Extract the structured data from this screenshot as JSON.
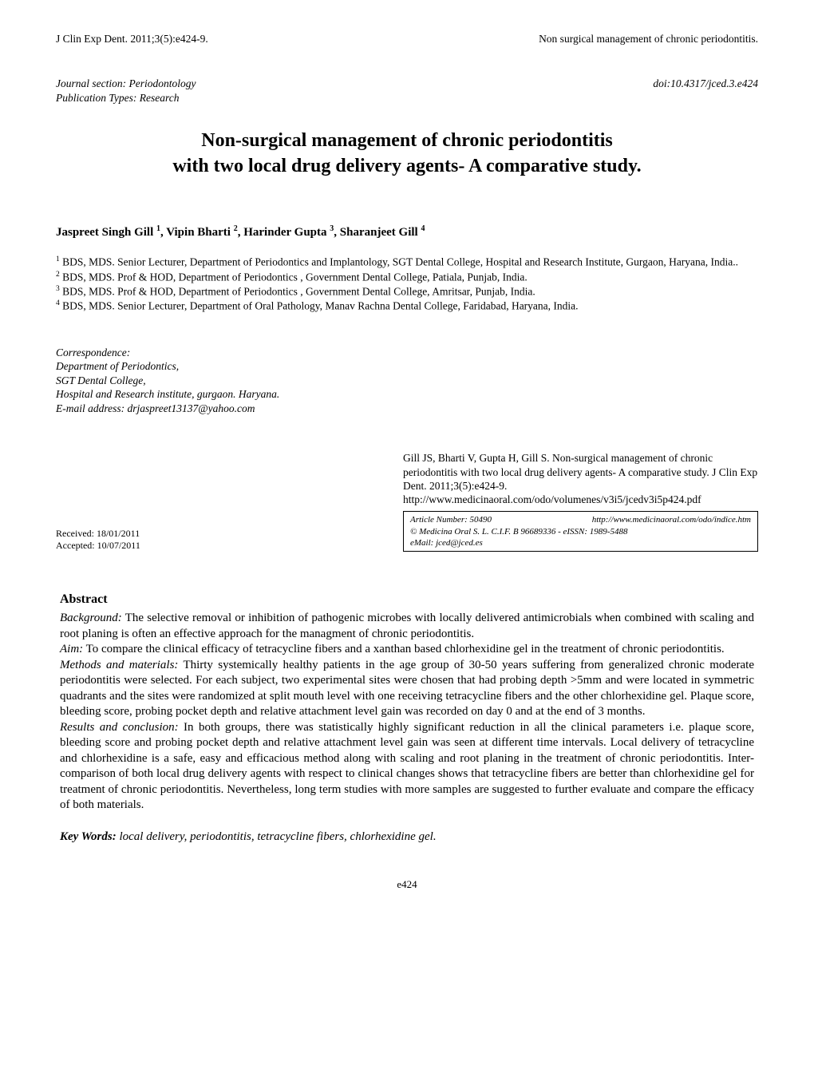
{
  "header": {
    "left": "J Clin Exp Dent. 2011;3(5):e424-9.",
    "right": "Non surgical management of chronic periodontitis."
  },
  "journal_meta": {
    "section": "Journal section: Periodontology",
    "pubtype": "Publication Types: Research",
    "doi": "doi:10.4317/jced.3.e424"
  },
  "title_line1": "Non-surgical management of chronic periodontitis",
  "title_line2": "with two local drug delivery agents- A comparative study.",
  "authors": {
    "a1": "Jaspreet Singh Gill",
    "a2": "Vipin Bharti",
    "a3": "Harinder Gupta",
    "a4": "Sharanjeet Gill",
    "s1": "1",
    "s2": "2",
    "s3": "3",
    "s4": "4",
    "sep": ", "
  },
  "affiliations": {
    "s1": "1",
    "t1": " BDS, MDS. Senior Lecturer, Department of Periodontics and Implantology, SGT Dental College, Hospital and Research Institute, Gurgaon, Haryana, India..",
    "s2": "2",
    "t2": " BDS, MDS. Prof & HOD, Department of Periodontics  , Government Dental College, Patiala, Punjab, India.",
    "s3": "3",
    "t3": " BDS, MDS. Prof & HOD, Department of Periodontics , Government Dental College, Amritsar, Punjab, India.",
    "s4": "4",
    "t4": " BDS, MDS. Senior Lecturer, Department of Oral Pathology, Manav Rachna Dental College, Faridabad, Haryana, India."
  },
  "correspondence": {
    "head": "Correspondence:",
    "l1": "Department of Periodontics,",
    "l2": "SGT Dental College,",
    "l3": "Hospital and Research institute, gurgaon. Haryana.",
    "l4": "E-mail address: drjaspreet13137@yahoo.com"
  },
  "dates": {
    "received": "Received: 18/01/2011",
    "accepted": "Accepted: 10/07/2011"
  },
  "citation": {
    "text": "Gill JS, Bharti V, Gupta H, Gill S. Non-surgical management of chronic periodontitis with two local drug delivery agents- A comparative study. J Clin Exp Dent. 2011;3(5):e424-9.",
    "url": "http://www.medicinaoral.com/odo/volumenes/v3i5/jcedv3i5p424.pdf"
  },
  "article_box": {
    "number_label": "Article Number: 50490",
    "indice_url": "http://www.medicinaoral.com/odo/indice.htm",
    "copyright": "© Medicina Oral S. L. C.I.F. B 96689336 - eISSN: 1989-5488",
    "email": "eMail:  jced@jced.es"
  },
  "abstract": {
    "head": "Abstract",
    "bg_head": "Background:",
    "bg": " The selective removal or inhibition of pathogenic microbes with locally delivered antimicrobials when combined with scaling and root planing is often an effective approach for the managment of chronic periodontitis.",
    "aim_head": "Aim:",
    "aim": " To compare the clinical efficacy of tetracycline fibers and a xanthan based chlorhexidine gel in the treatment of chronic periodontitis.",
    "mm_head": "Methods and materials:",
    "mm": " Thirty systemically healthy patients in the age group of 30-50 years suffering from generalized chronic moderate periodontitis were selected. For each subject, two experimental sites were chosen that had probing depth >5mm and were located in symmetric quadrants and the sites were randomized at split mouth level with one receiving tetracycline fibers and the other chlorhexidine gel. Plaque score, bleeding score, probing pocket depth and relative attachment level gain was recorded on day 0 and at the end of 3 months.",
    "rc_head": "Results and conclusion:",
    "rc": " In both groups, there was statistically highly significant reduction in all the clinical parameters i.e. plaque score, bleeding score and probing pocket depth and relative attachment level gain was seen at different time intervals. Local delivery of tetracycline and chlorhexidine is a safe, easy and efficacious method along with scaling and root planing in the treatment of chronic periodontitis. Inter-comparison of both local drug delivery agents with respect to clinical changes shows that tetracycline fibers are better than chlorhexidine gel for treatment of chronic periodontitis. Nevertheless, long term studies with more samples are suggested to further evaluate and compare the efficacy of both materials."
  },
  "keywords": {
    "head": "Key Words:",
    "text": " local delivery, periodontitis, tetracycline fibers, chlorhexidine gel."
  },
  "pagenum": "e424"
}
